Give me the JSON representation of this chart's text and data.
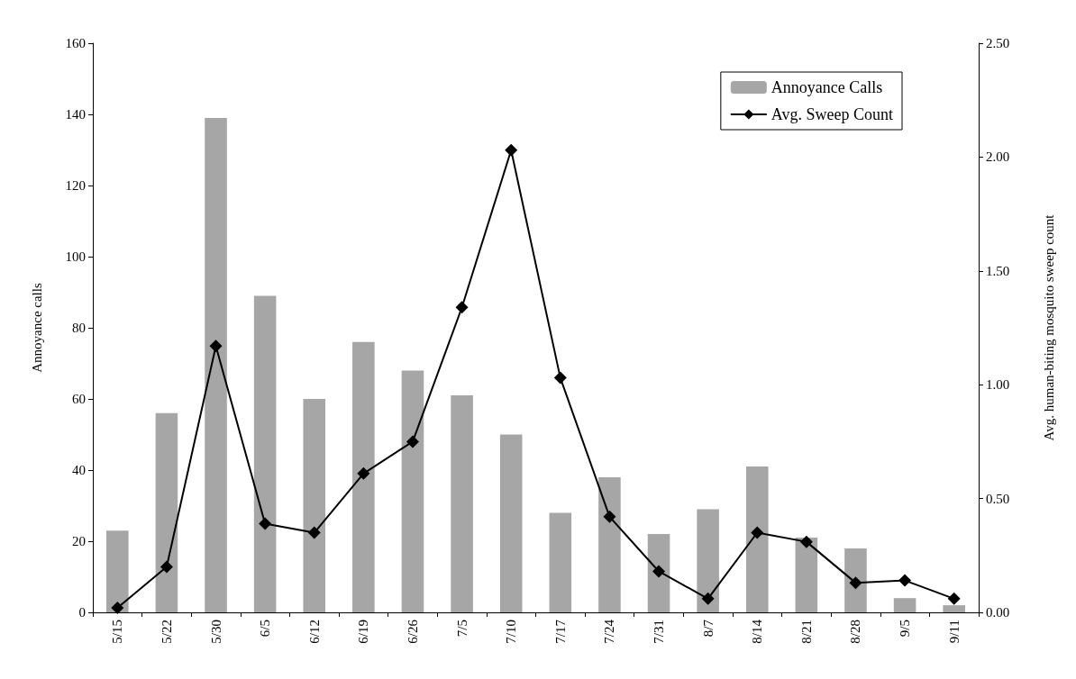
{
  "chart_data": {
    "type": "bar",
    "ylabel": "Annoyance calls",
    "y2label": "Avg. human-biting mosquito sweep count",
    "categories": [
      "5/15",
      "5/22",
      "5/30",
      "6/5",
      "6/12",
      "6/19",
      "6/26",
      "7/5",
      "7/10",
      "7/17",
      "7/24",
      "7/31",
      "8/7",
      "8/14",
      "8/21",
      "8/28",
      "9/5",
      "9/11"
    ],
    "series": [
      {
        "name": "Annoyance Calls",
        "color": "#a6a6a6",
        "values": [
          23,
          56,
          139,
          89,
          60,
          76,
          68,
          61,
          50,
          28,
          38,
          22,
          29,
          41,
          21,
          18,
          4,
          2
        ]
      },
      {
        "name": "Avg. Sweep Count",
        "type": "line",
        "axis": "y2",
        "color": "#000000",
        "marker": "diamond",
        "values": [
          0.02,
          0.2,
          1.17,
          0.39,
          0.35,
          0.61,
          0.75,
          1.34,
          2.03,
          1.03,
          0.42,
          0.18,
          0.06,
          0.35,
          0.31,
          0.13,
          0.14,
          0.06
        ]
      }
    ],
    "ylim": [
      0,
      160
    ],
    "yticks": [
      0,
      20,
      40,
      60,
      80,
      100,
      120,
      140,
      160
    ],
    "y2lim": [
      0,
      2.5
    ],
    "y2ticks": [
      {
        "value": 0,
        "label": "0.00"
      },
      {
        "value": 0.5,
        "label": "0.50"
      },
      {
        "value": 1,
        "label": "1.00"
      },
      {
        "value": 1.5,
        "label": "1.50"
      },
      {
        "value": 2,
        "label": "2.00"
      },
      {
        "value": 2.5,
        "label": "2.50"
      }
    ],
    "grid": false,
    "legend": "top right"
  }
}
